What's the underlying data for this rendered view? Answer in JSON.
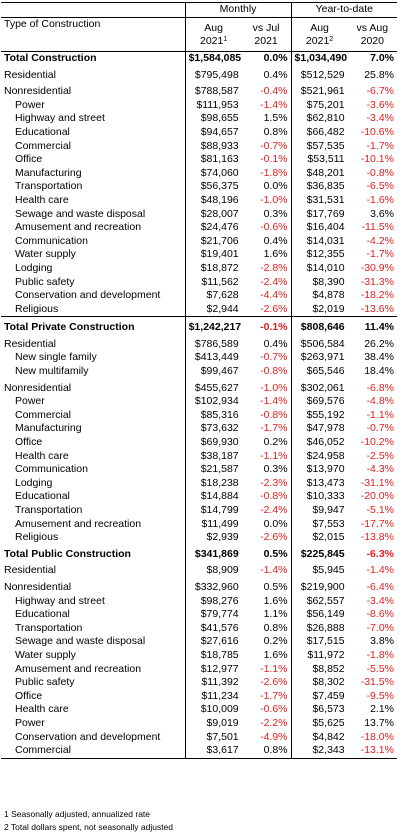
{
  "header": {
    "type_label": "Type of Construction",
    "monthly": "Monthly",
    "ytd": "Year-to-date",
    "col_aug": "Aug",
    "col_year1": "2021",
    "col_sup1": "1",
    "col_vsjul": "vs Jul",
    "col_vsjul_year": "2021",
    "col_aug2": "Aug",
    "col_year2": "2021",
    "col_sup2": "2",
    "col_vsaug": "vs Aug",
    "col_vsaug_year": "2020"
  },
  "rows": [
    {
      "name": "Total Construction",
      "v1": "$1,584,085",
      "p1": "0.0%",
      "v2": "$1,034,490",
      "p2": "7.0%",
      "style": "bold"
    },
    {
      "name": "Residential",
      "v1": "$795,498",
      "p1": "0.4%",
      "v2": "$512,529",
      "p2": "25.8%",
      "style": "gap"
    },
    {
      "name": "Nonresidential",
      "v1": "$788,587",
      "p1": "-0.4%",
      "v2": "$521,961",
      "p2": "-6.7%",
      "style": "gap"
    },
    {
      "name": "Power",
      "v1": "$111,953",
      "p1": "-1.4%",
      "v2": "$75,201",
      "p2": "-3.6%",
      "style": "sub"
    },
    {
      "name": "Highway and street",
      "v1": "$98,655",
      "p1": "1.5%",
      "v2": "$62,810",
      "p2": "-3.4%",
      "style": "sub"
    },
    {
      "name": "Educational",
      "v1": "$94,657",
      "p1": "0.8%",
      "v2": "$66,482",
      "p2": "-10.6%",
      "style": "sub"
    },
    {
      "name": "Commercial",
      "v1": "$88,933",
      "p1": "-0.7%",
      "v2": "$57,535",
      "p2": "-1.7%",
      "style": "sub"
    },
    {
      "name": "Office",
      "v1": "$81,163",
      "p1": "-0.1%",
      "v2": "$53,511",
      "p2": "-10.1%",
      "style": "sub"
    },
    {
      "name": "Manufacturing",
      "v1": "$74,060",
      "p1": "-1.8%",
      "v2": "$48,201",
      "p2": "-0.8%",
      "style": "sub"
    },
    {
      "name": "Transportation",
      "v1": "$56,375",
      "p1": "0.0%",
      "v2": "$36,835",
      "p2": "-6.5%",
      "style": "sub"
    },
    {
      "name": "Health care",
      "v1": "$48,196",
      "p1": "-1.0%",
      "v2": "$31,531",
      "p2": "-1.6%",
      "style": "sub"
    },
    {
      "name": "Sewage and waste disposal",
      "v1": "$28,007",
      "p1": "0.3%",
      "v2": "$17,769",
      "p2": "3.6%",
      "style": "sub"
    },
    {
      "name": "Amusement and recreation",
      "v1": "$24,476",
      "p1": "-0.6%",
      "v2": "$16,404",
      "p2": "-11.5%",
      "style": "sub"
    },
    {
      "name": "Communication",
      "v1": "$21,706",
      "p1": "0.4%",
      "v2": "$14,031",
      "p2": "-4.2%",
      "style": "sub"
    },
    {
      "name": "Water supply",
      "v1": "$19,401",
      "p1": "1.6%",
      "v2": "$12,355",
      "p2": "-1.7%",
      "style": "sub"
    },
    {
      "name": "Lodging",
      "v1": "$18,872",
      "p1": "-2.8%",
      "v2": "$14,010",
      "p2": "-30.9%",
      "style": "sub"
    },
    {
      "name": "Public safety",
      "v1": "$11,562",
      "p1": "-2.4%",
      "v2": "$8,390",
      "p2": "-31.3%",
      "style": "sub"
    },
    {
      "name": "Conservation and development",
      "v1": "$7,628",
      "p1": "-4.4%",
      "v2": "$4,878",
      "p2": "-18.2%",
      "style": "sub"
    },
    {
      "name": "Religious",
      "v1": "$2,944",
      "p1": "-2.6%",
      "v2": "$2,019",
      "p2": "-13.6%",
      "style": "sub"
    },
    {
      "name": "Total Private Construction",
      "v1": "$1,242,217",
      "p1": "-0.1%",
      "v2": "$808,646",
      "p2": "11.4%",
      "style": "bold sec"
    },
    {
      "name": "Residential",
      "v1": "$786,589",
      "p1": "0.4%",
      "v2": "$506,584",
      "p2": "26.2%",
      "style": "gap"
    },
    {
      "name": "New single family",
      "v1": "$413,449",
      "p1": "-0.7%",
      "v2": "$263,971",
      "p2": "38.4%",
      "style": "sub"
    },
    {
      "name": "New multifamily",
      "v1": "$99,467",
      "p1": "-0.8%",
      "v2": "$65,546",
      "p2": "18.4%",
      "style": "sub"
    },
    {
      "name": "Nonresidential",
      "v1": "$455,627",
      "p1": "-1.0%",
      "v2": "$302,061",
      "p2": "-6.8%",
      "style": "gap"
    },
    {
      "name": "Power",
      "v1": "$102,934",
      "p1": "-1.4%",
      "v2": "$69,576",
      "p2": "-4.8%",
      "style": "sub"
    },
    {
      "name": "Commercial",
      "v1": "$85,316",
      "p1": "-0.8%",
      "v2": "$55,192",
      "p2": "-1.1%",
      "style": "sub"
    },
    {
      "name": "Manufacturing",
      "v1": "$73,632",
      "p1": "-1.7%",
      "v2": "$47,978",
      "p2": "-0.7%",
      "style": "sub"
    },
    {
      "name": "Office",
      "v1": "$69,930",
      "p1": "0.2%",
      "v2": "$46,052",
      "p2": "-10.2%",
      "style": "sub"
    },
    {
      "name": "Health care",
      "v1": "$38,187",
      "p1": "-1.1%",
      "v2": "$24,958",
      "p2": "-2.5%",
      "style": "sub"
    },
    {
      "name": "Communication",
      "v1": "$21,587",
      "p1": "0.3%",
      "v2": "$13,970",
      "p2": "-4.3%",
      "style": "sub"
    },
    {
      "name": "Lodging",
      "v1": "$18,238",
      "p1": "-2.3%",
      "v2": "$13,473",
      "p2": "-31.1%",
      "style": "sub"
    },
    {
      "name": "Educational",
      "v1": "$14,884",
      "p1": "-0.8%",
      "v2": "$10,333",
      "p2": "-20.0%",
      "style": "sub"
    },
    {
      "name": "Transportation",
      "v1": "$14,799",
      "p1": "-2.4%",
      "v2": "$9,947",
      "p2": "-5.1%",
      "style": "sub"
    },
    {
      "name": "Amusement and recreation",
      "v1": "$11,499",
      "p1": "0.0%",
      "v2": "$7,553",
      "p2": "-17.7%",
      "style": "sub"
    },
    {
      "name": "Religious",
      "v1": "$2,939",
      "p1": "-2.6%",
      "v2": "$2,015",
      "p2": "-13.8%",
      "style": "sub"
    },
    {
      "name": "Total Public Construction",
      "v1": "$341,869",
      "p1": "0.5%",
      "v2": "$225,845",
      "p2": "-6.3%",
      "style": "bold sec2"
    },
    {
      "name": "Residential",
      "v1": "$8,909",
      "p1": "-1.4%",
      "v2": "$5,945",
      "p2": "-1.4%",
      "style": "gap"
    },
    {
      "name": "Nonresidential",
      "v1": "$332,960",
      "p1": "0.5%",
      "v2": "$219,900",
      "p2": "-6.4%",
      "style": "gap"
    },
    {
      "name": "Highway and street",
      "v1": "$98,276",
      "p1": "1.6%",
      "v2": "$62,557",
      "p2": "-3.4%",
      "style": "sub"
    },
    {
      "name": "Educational",
      "v1": "$79,774",
      "p1": "1.1%",
      "v2": "$56,149",
      "p2": "-8.6%",
      "style": "sub"
    },
    {
      "name": "Transportation",
      "v1": "$41,576",
      "p1": "0.8%",
      "v2": "$26,888",
      "p2": "-7.0%",
      "style": "sub"
    },
    {
      "name": "Sewage and waste disposal",
      "v1": "$27,616",
      "p1": "0.2%",
      "v2": "$17,515",
      "p2": "3.8%",
      "style": "sub"
    },
    {
      "name": "Water supply",
      "v1": "$18,785",
      "p1": "1.6%",
      "v2": "$11,972",
      "p2": "-1.8%",
      "style": "sub"
    },
    {
      "name": "Amusement and recreation",
      "v1": "$12,977",
      "p1": "-1.1%",
      "v2": "$8,852",
      "p2": "-5.5%",
      "style": "sub"
    },
    {
      "name": "Public safety",
      "v1": "$11,392",
      "p1": "-2.6%",
      "v2": "$8,302",
      "p2": "-31.5%",
      "style": "sub"
    },
    {
      "name": "Office",
      "v1": "$11,234",
      "p1": "-1.7%",
      "v2": "$7,459",
      "p2": "-9.5%",
      "style": "sub"
    },
    {
      "name": "Health care",
      "v1": "$10,009",
      "p1": "-0.6%",
      "v2": "$6,573",
      "p2": "2.1%",
      "style": "sub"
    },
    {
      "name": "Power",
      "v1": "$9,019",
      "p1": "-2.2%",
      "v2": "$5,625",
      "p2": "13.7%",
      "style": "sub"
    },
    {
      "name": "Conservation and development",
      "v1": "$7,501",
      "p1": "-4.9%",
      "v2": "$4,842",
      "p2": "-18.0%",
      "style": "sub"
    },
    {
      "name": "Commercial",
      "v1": "$3,617",
      "p1": "0.8%",
      "v2": "$2,343",
      "p2": "-13.1%",
      "style": "sub last"
    }
  ],
  "notes": {
    "note1": "1 Seasonally adjusted, annualized rate",
    "note2": "2 Total dollars spent, not seasonally adjusted"
  },
  "colors": {
    "negative": "#e0201f",
    "text": "#000000"
  }
}
